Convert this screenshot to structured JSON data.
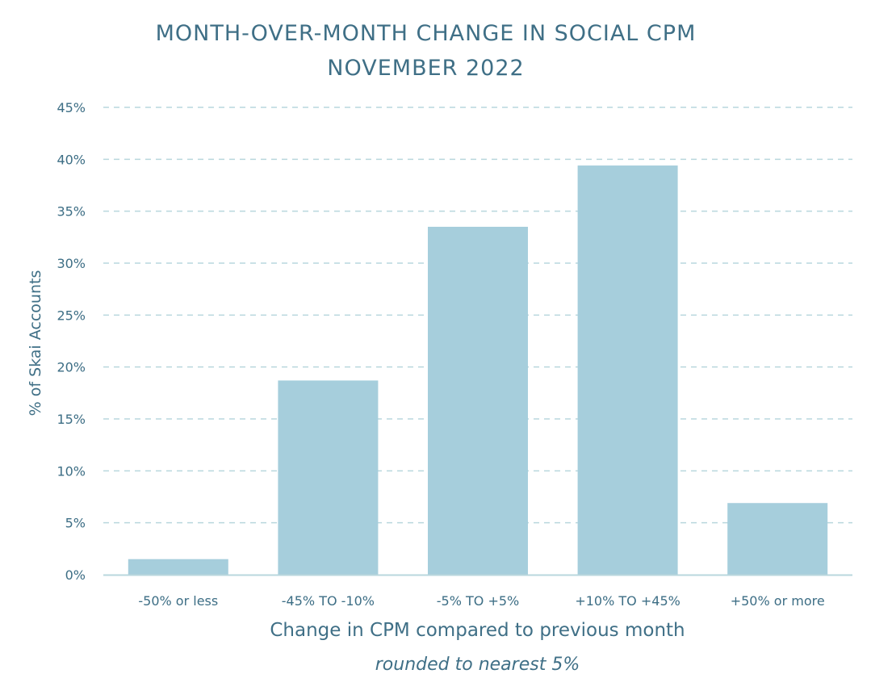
{
  "chart_data": {
    "type": "bar",
    "title": "MONTH-OVER-MONTH CHANGE IN SOCIAL CPM",
    "subtitle": "NOVEMBER 2022",
    "xlabel": "Change in CPM compared to previous month",
    "xlabel_note": "rounded to nearest 5%",
    "ylabel": "% of Skai Accounts",
    "categories": [
      "-50% or less",
      "-45% TO -10%",
      "-5% TO +5%",
      "+10% TO +45%",
      "+50% or more"
    ],
    "values": [
      1.5,
      18.7,
      33.5,
      39.4,
      6.9
    ],
    "ylim": [
      0,
      45
    ],
    "yticks": [
      "0%",
      "5%",
      "10%",
      "15%",
      "20%",
      "25%",
      "30%",
      "35%",
      "40%",
      "45%"
    ],
    "grid": true,
    "bar_color": "#a6cedc",
    "grid_color": "#b9d7dd",
    "text_color": "#3d6e85"
  }
}
